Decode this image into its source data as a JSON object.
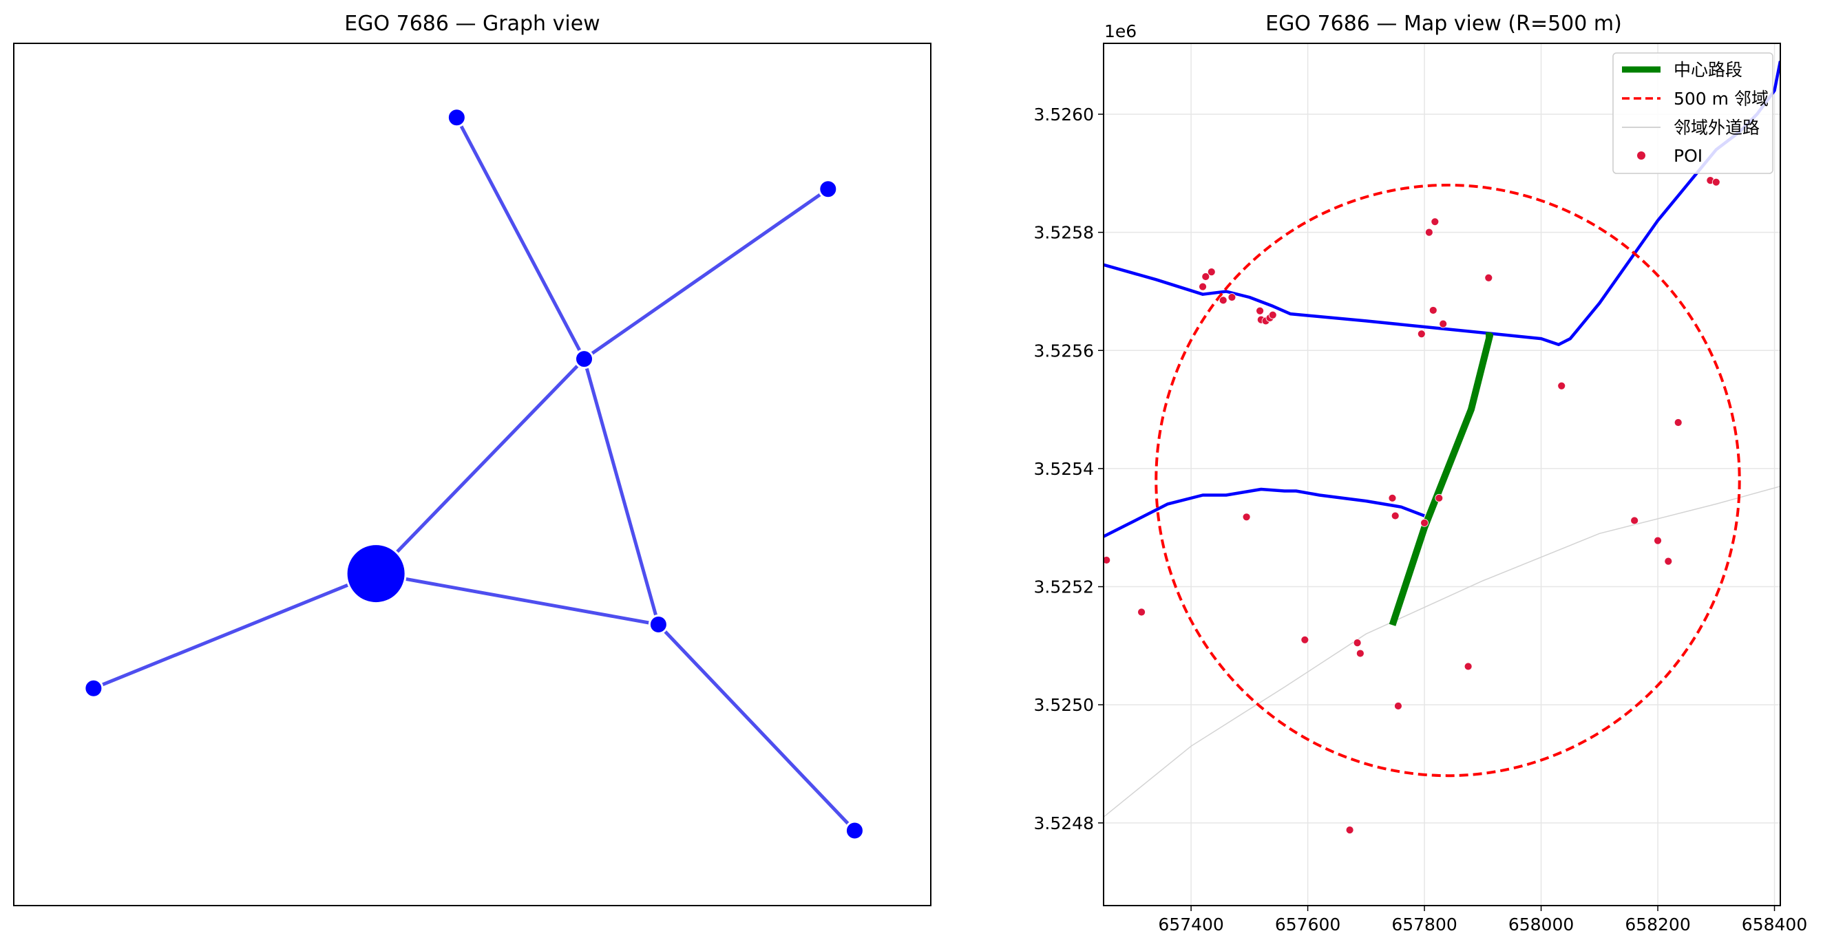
{
  "chart_data": [
    {
      "type": "network",
      "title": "EGO 7686 — Graph view",
      "node_color": "#0000ff",
      "edge_color": "#4444ee",
      "nodes": [
        {
          "id": "ego",
          "x": 0.395,
          "y": 0.385,
          "size": "large"
        },
        {
          "id": "n1",
          "x": 0.483,
          "y": 0.914,
          "size": "small"
        },
        {
          "id": "n2",
          "x": 0.888,
          "y": 0.831,
          "size": "small"
        },
        {
          "id": "n3",
          "x": 0.622,
          "y": 0.634,
          "size": "small"
        },
        {
          "id": "n4",
          "x": 0.703,
          "y": 0.326,
          "size": "small"
        },
        {
          "id": "n5",
          "x": 0.087,
          "y": 0.252,
          "size": "small"
        },
        {
          "id": "n6",
          "x": 0.917,
          "y": 0.087,
          "size": "small"
        }
      ],
      "edges": [
        [
          "n1",
          "n3"
        ],
        [
          "n2",
          "n3"
        ],
        [
          "n3",
          "ego"
        ],
        [
          "n3",
          "n4"
        ],
        [
          "ego",
          "n4"
        ],
        [
          "ego",
          "n5"
        ],
        [
          "n4",
          "n6"
        ]
      ]
    },
    {
      "type": "map",
      "title": "EGO 7686 — Map view (R=500 m)",
      "y_offset_label": "1e6",
      "xlim": [
        657250,
        658410
      ],
      "ylim": [
        3524660,
        3526120
      ],
      "xticks": [
        657400,
        657600,
        657800,
        658000,
        658200,
        658400
      ],
      "xtick_labels": [
        "657400",
        "657600",
        "657800",
        "658000",
        "658200",
        "658400"
      ],
      "yticks": [
        3524800,
        3525000,
        3525200,
        3525400,
        3525600,
        3525800,
        3526000
      ],
      "ytick_labels": [
        "3.5248",
        "3.5250",
        "3.5252",
        "3.5254",
        "3.5256",
        "3.5258",
        "3.5260"
      ],
      "grid": true,
      "legend_position": "top-right",
      "legend": [
        {
          "label": "中心路段",
          "style": "green-thick-line"
        },
        {
          "label": "500 m 邻域",
          "style": "red-dashed-line"
        },
        {
          "label": "邻域外道路",
          "style": "light-gray-line"
        },
        {
          "label": "POI",
          "style": "crimson-dot"
        }
      ],
      "buffer_circle": {
        "center": [
          657840,
          3525380
        ],
        "radius": 500
      },
      "center_segment": [
        [
          657745,
          3525135
        ],
        [
          657800,
          3525300
        ],
        [
          657880,
          3525500
        ],
        [
          657912,
          3525625
        ],
        [
          657905,
          3525625
        ]
      ],
      "neighbor_roads": [
        [
          [
            657250,
            3525745
          ],
          [
            657340,
            3525720
          ],
          [
            657420,
            3525695
          ],
          [
            657460,
            3525700
          ],
          [
            657500,
            3525690
          ],
          [
            657540,
            3525675
          ],
          [
            657570,
            3525662
          ],
          [
            657700,
            3525650
          ],
          [
            657850,
            3525635
          ],
          [
            658000,
            3525620
          ],
          [
            658030,
            3525610
          ],
          [
            658050,
            3525620
          ],
          [
            658100,
            3525680
          ],
          [
            658150,
            3525750
          ],
          [
            658200,
            3525820
          ],
          [
            658250,
            3525880
          ],
          [
            658300,
            3525940
          ],
          [
            658340,
            3525970
          ],
          [
            658370,
            3526000
          ],
          [
            658400,
            3526040
          ],
          [
            658410,
            3526090
          ]
        ],
        [
          [
            657250,
            3525285
          ],
          [
            657300,
            3525310
          ],
          [
            657360,
            3525340
          ],
          [
            657420,
            3525355
          ],
          [
            657460,
            3525355
          ],
          [
            657520,
            3525365
          ],
          [
            657560,
            3525362
          ],
          [
            657580,
            3525362
          ],
          [
            657620,
            3525355
          ],
          [
            657700,
            3525345
          ],
          [
            657760,
            3525335
          ],
          [
            657800,
            3525320
          ]
        ]
      ],
      "outside_roads": [
        [
          [
            657250,
            3524810
          ],
          [
            657400,
            3524930
          ],
          [
            657560,
            3525030
          ],
          [
            657700,
            3525120
          ],
          [
            657900,
            3525210
          ],
          [
            658100,
            3525290
          ],
          [
            658300,
            3525340
          ],
          [
            658410,
            3525370
          ]
        ]
      ],
      "poi": [
        [
          657255,
          3525245
        ],
        [
          657315,
          3525157
        ],
        [
          657425,
          3525725
        ],
        [
          657435,
          3525733
        ],
        [
          657420,
          3525708
        ],
        [
          657455,
          3525685
        ],
        [
          657470,
          3525690
        ],
        [
          657518,
          3525667
        ],
        [
          657520,
          3525652
        ],
        [
          657528,
          3525650
        ],
        [
          657535,
          3525655
        ],
        [
          657540,
          3525660
        ],
        [
          657495,
          3525318
        ],
        [
          657595,
          3525110
        ],
        [
          657685,
          3525105
        ],
        [
          657690,
          3525087
        ],
        [
          657672,
          3524788
        ],
        [
          657745,
          3525350
        ],
        [
          657750,
          3525320
        ],
        [
          657755,
          3524998
        ],
        [
          657800,
          3525308
        ],
        [
          657808,
          3525800
        ],
        [
          657815,
          3525668
        ],
        [
          657818,
          3525818
        ],
        [
          657825,
          3525350
        ],
        [
          657832,
          3525645
        ],
        [
          657795,
          3525628
        ],
        [
          657875,
          3525065
        ],
        [
          657910,
          3525723
        ],
        [
          658035,
          3525540
        ],
        [
          658160,
          3525312
        ],
        [
          658200,
          3525278
        ],
        [
          658218,
          3525243
        ],
        [
          658235,
          3525478
        ],
        [
          658290,
          3525888
        ],
        [
          658300,
          3525885
        ]
      ]
    }
  ]
}
